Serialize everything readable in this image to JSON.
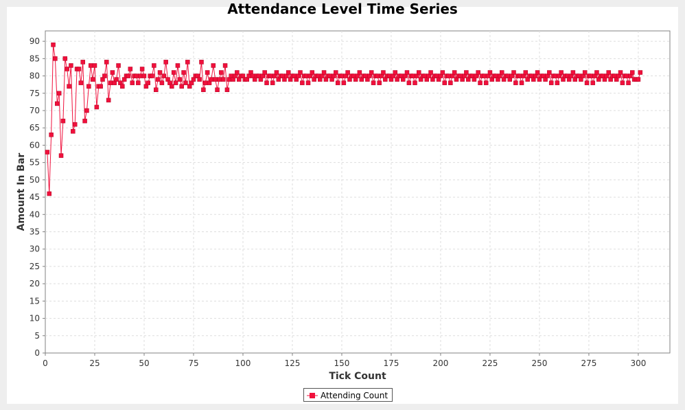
{
  "colors": {
    "series": "#f0103c",
    "series_stroke": "#b00020",
    "grid": "#dddddd",
    "axis": "#808080",
    "plot_border": "#808080"
  },
  "chart_data": {
    "type": "line",
    "title": "Attendance Level Time Series",
    "xlabel": "Tick Count",
    "ylabel": "Amount In Bar",
    "xlim": [
      0,
      316
    ],
    "ylim": [
      0,
      93
    ],
    "xticks": [
      0,
      25,
      50,
      75,
      100,
      125,
      150,
      175,
      200,
      225,
      250,
      275,
      300
    ],
    "yticks": [
      0,
      5,
      10,
      15,
      20,
      25,
      30,
      35,
      40,
      45,
      50,
      55,
      60,
      65,
      70,
      75,
      80,
      85,
      90
    ],
    "grid": true,
    "legend_position": "bottom-center",
    "series": [
      {
        "name": "Attending Count",
        "marker": "square",
        "x_start": 1,
        "x_step": 1,
        "values": [
          58,
          46,
          63,
          89,
          85,
          72,
          75,
          57,
          67,
          85,
          82,
          77,
          83,
          64,
          66,
          82,
          82,
          78,
          84,
          67,
          70,
          77,
          83,
          79,
          83,
          71,
          77,
          77,
          79,
          80,
          84,
          73,
          78,
          81,
          78,
          79,
          83,
          78,
          77,
          79,
          80,
          80,
          82,
          78,
          80,
          80,
          78,
          80,
          82,
          80,
          77,
          78,
          80,
          80,
          83,
          76,
          79,
          81,
          78,
          80,
          84,
          79,
          78,
          77,
          81,
          78,
          83,
          79,
          77,
          81,
          78,
          84,
          77,
          78,
          79,
          80,
          80,
          79,
          84,
          76,
          78,
          81,
          78,
          79,
          83,
          79,
          76,
          79,
          81,
          79,
          83,
          76,
          79,
          80,
          79,
          80,
          81,
          79,
          80,
          80,
          79,
          79,
          80,
          81,
          80,
          79,
          80,
          80,
          79,
          80,
          81,
          78,
          80,
          80,
          78,
          80,
          81,
          79,
          80,
          80,
          79,
          80,
          81,
          79,
          80,
          80,
          79,
          80,
          81,
          78,
          80,
          80,
          78,
          80,
          81,
          79,
          80,
          80,
          79,
          80,
          81,
          79,
          80,
          80,
          79,
          80,
          81,
          78,
          80,
          80,
          78,
          80,
          81,
          79,
          80,
          80,
          79,
          80,
          81,
          79,
          80,
          80,
          79,
          80,
          81,
          78,
          80,
          80,
          78,
          80,
          81,
          79,
          80,
          80,
          79,
          80,
          81,
          79,
          80,
          80,
          79,
          80,
          81,
          78,
          80,
          80,
          78,
          80,
          81,
          79,
          80,
          80,
          79,
          80,
          81,
          79,
          80,
          80,
          79,
          80,
          81,
          78,
          80,
          80,
          78,
          80,
          81,
          79,
          80,
          80,
          79,
          80,
          81,
          79,
          80,
          80,
          79,
          80,
          81,
          78,
          80,
          80,
          78,
          80,
          81,
          79,
          80,
          80,
          79,
          80,
          81,
          79,
          80,
          80,
          79,
          80,
          81,
          78,
          80,
          80,
          78,
          80,
          81,
          79,
          80,
          80,
          79,
          80,
          81,
          79,
          80,
          80,
          79,
          80,
          81,
          78,
          80,
          80,
          78,
          80,
          81,
          79,
          80,
          80,
          79,
          80,
          81,
          79,
          80,
          80,
          79,
          80,
          81,
          78,
          80,
          80,
          78,
          80,
          81,
          79,
          80,
          80,
          79,
          80,
          81,
          79,
          80,
          80,
          79,
          80,
          81,
          78,
          80,
          80,
          78,
          80,
          81,
          79,
          79,
          79,
          81
        ]
      }
    ]
  }
}
